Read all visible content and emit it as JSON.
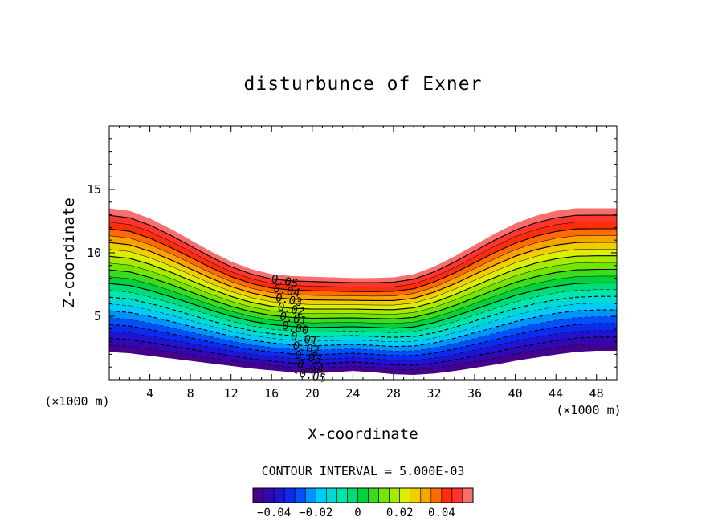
{
  "chart_data": {
    "type": "contour",
    "title": "disturbunce of Exner",
    "xlabel": "X-coordinate",
    "ylabel": "Z-coordinate",
    "x_unit_label": "(×1000 m)",
    "y_unit_label": "(×1000 m)",
    "xlim": [
      0,
      50
    ],
    "ylim": [
      0,
      20
    ],
    "x_ticks": [
      4,
      8,
      12,
      16,
      20,
      24,
      28,
      32,
      36,
      40,
      44,
      48
    ],
    "y_ticks": [
      5,
      10,
      15
    ],
    "contour_interval_text": "CONTOUR INTERVAL = 5.000E-03",
    "contour_interval": 0.005,
    "level_min": -0.05,
    "level_max": 0.055,
    "surface_height_profile": {
      "x": [
        0,
        2,
        4,
        6,
        8,
        10,
        12,
        14,
        16,
        18,
        20,
        22,
        24,
        26,
        28,
        30,
        32,
        34,
        36,
        38,
        40,
        42,
        44,
        46,
        48,
        50
      ],
      "top_z": [
        13.5,
        13.3,
        12.7,
        11.9,
        11.0,
        10.1,
        9.3,
        8.7,
        8.3,
        8.15,
        8.1,
        8.05,
        8.0,
        8.0,
        8.05,
        8.3,
        8.9,
        9.7,
        10.6,
        11.5,
        12.3,
        12.9,
        13.3,
        13.5,
        13.5,
        13.5
      ],
      "bottom_z": [
        2.2,
        2.1,
        1.9,
        1.7,
        1.5,
        1.3,
        1.1,
        0.9,
        0.75,
        0.6,
        0.5,
        0.6,
        0.7,
        0.6,
        0.45,
        0.4,
        0.5,
        0.7,
        0.95,
        1.2,
        1.5,
        1.75,
        2.0,
        2.2,
        2.3,
        2.3
      ]
    },
    "contour_labels": [
      "0.05",
      "0.04",
      "0.03",
      "0.02",
      "0.01",
      "0.00",
      "-0.01",
      "-0.02",
      "-0.03",
      "-0.04",
      "-0.05"
    ],
    "colorbar": {
      "tick_values": [
        -0.04,
        -0.02,
        0,
        0.02,
        0.04
      ],
      "tick_labels": [
        "−0.04",
        "−0.02",
        "0",
        "0.02",
        "0.04"
      ]
    }
  }
}
